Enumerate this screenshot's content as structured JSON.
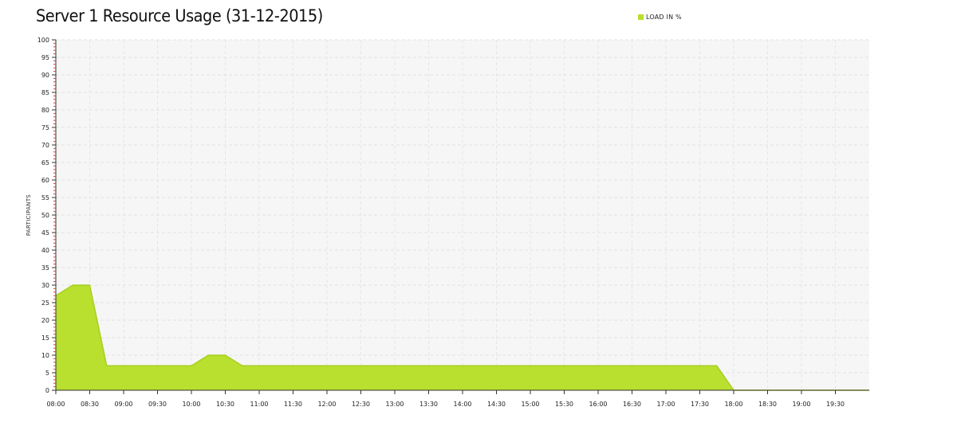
{
  "chart_data": {
    "type": "area",
    "title": "Server 1 Resource Usage (31-12-2015)",
    "xlabel": "",
    "ylabel": "PARTICIPANTS",
    "legend": {
      "position": "top-right",
      "entries": [
        "LOAD IN %"
      ]
    },
    "ylim": [
      0,
      100
    ],
    "yticks": [
      0,
      5,
      10,
      15,
      20,
      25,
      30,
      35,
      40,
      45,
      50,
      55,
      60,
      65,
      70,
      75,
      80,
      85,
      90,
      95,
      100
    ],
    "x_start": "08:00",
    "x_end": "20:00",
    "xticks": [
      "08:00",
      "08:30",
      "09:00",
      "09:30",
      "10:00",
      "10:30",
      "11:00",
      "11:30",
      "12:00",
      "12:30",
      "13:00",
      "13:30",
      "14:00",
      "14:30",
      "15:00",
      "15:30",
      "16:00",
      "16:30",
      "17:00",
      "17:30",
      "18:00",
      "18:30",
      "19:00",
      "19:30"
    ],
    "grid": true,
    "series": [
      {
        "name": "LOAD IN %",
        "color": "#b9df2f",
        "points": [
          {
            "x": "08:00",
            "y": 27
          },
          {
            "x": "08:15",
            "y": 30
          },
          {
            "x": "08:30",
            "y": 30
          },
          {
            "x": "08:45",
            "y": 7
          },
          {
            "x": "10:00",
            "y": 7
          },
          {
            "x": "10:15",
            "y": 10
          },
          {
            "x": "10:30",
            "y": 10
          },
          {
            "x": "10:45",
            "y": 7
          },
          {
            "x": "17:45",
            "y": 7
          },
          {
            "x": "18:00",
            "y": 0
          },
          {
            "x": "20:00",
            "y": 0
          }
        ]
      }
    ]
  }
}
